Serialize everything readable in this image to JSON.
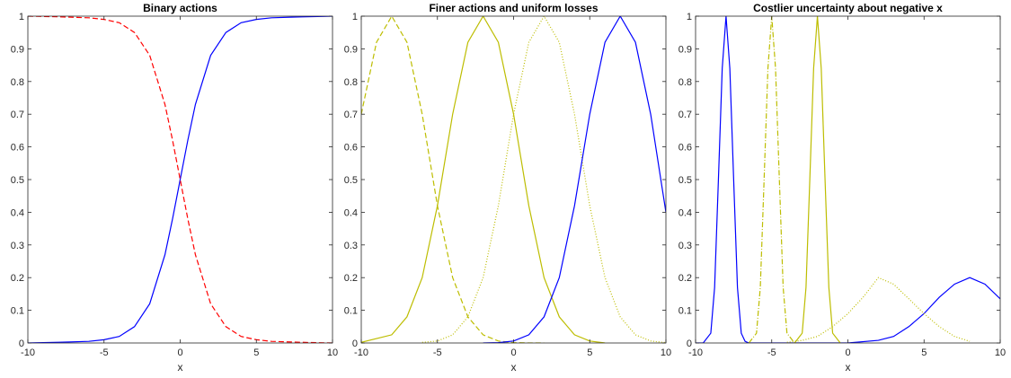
{
  "chart_data": [
    {
      "type": "line",
      "title": "Binary actions",
      "xlabel": "x",
      "ylabel": "",
      "xlim": [
        -10,
        10
      ],
      "ylim": [
        0,
        1
      ],
      "xticks": [
        "-10",
        "-5",
        "0",
        "5",
        "10"
      ],
      "yticks": [
        "0",
        "0.1",
        "0.2",
        "0.3",
        "0.4",
        "0.5",
        "0.6",
        "0.7",
        "0.8",
        "0.9",
        "1"
      ],
      "grid": false,
      "series": [
        {
          "color": "#0000ff",
          "style": "solid",
          "x": [
            -10,
            -8,
            -6,
            -5,
            -4,
            -3,
            -2,
            -1,
            -0.5,
            0,
            0.5,
            1,
            2,
            3,
            4,
            5,
            6,
            8,
            10
          ],
          "y": [
            0.0,
            0.002,
            0.005,
            0.01,
            0.02,
            0.05,
            0.12,
            0.27,
            0.38,
            0.5,
            0.62,
            0.73,
            0.88,
            0.95,
            0.98,
            0.99,
            0.995,
            0.998,
            1.0
          ]
        },
        {
          "color": "#ff0000",
          "style": "dashed",
          "x": [
            -10,
            -8,
            -6,
            -5,
            -4,
            -3,
            -2,
            -1,
            -0.5,
            0,
            0.5,
            1,
            2,
            3,
            4,
            5,
            6,
            8,
            10
          ],
          "y": [
            1.0,
            0.998,
            0.995,
            0.99,
            0.98,
            0.95,
            0.88,
            0.73,
            0.62,
            0.5,
            0.38,
            0.27,
            0.12,
            0.05,
            0.02,
            0.01,
            0.005,
            0.002,
            0.0
          ]
        }
      ]
    },
    {
      "type": "line",
      "title": "Finer actions and uniform losses",
      "xlabel": "x",
      "ylabel": "",
      "xlim": [
        -10,
        10
      ],
      "ylim": [
        0,
        1
      ],
      "xticks": [
        "-10",
        "-5",
        "0",
        "5",
        "10"
      ],
      "yticks": [
        "0",
        "0.1",
        "0.2",
        "0.3",
        "0.4",
        "0.5",
        "0.6",
        "0.7",
        "0.8",
        "0.9",
        "1"
      ],
      "grid": false,
      "series": [
        {
          "color": "#bdbd00",
          "style": "dashed",
          "x": [
            -10,
            -9,
            -8,
            -7,
            -6,
            -5,
            -4,
            -3,
            -2,
            -1,
            0,
            1,
            2
          ],
          "y": [
            0.7,
            0.92,
            1.0,
            0.92,
            0.7,
            0.42,
            0.2,
            0.08,
            0.025,
            0.006,
            0.001,
            0.0,
            0.0
          ]
        },
        {
          "color": "#bdbd00",
          "style": "solid",
          "x": [
            -10,
            -8,
            -7,
            -6,
            -5,
            -4,
            -3,
            -2,
            -1,
            0,
            1,
            2,
            3,
            4,
            5,
            6
          ],
          "y": [
            0.002,
            0.025,
            0.08,
            0.2,
            0.42,
            0.7,
            0.92,
            1.0,
            0.92,
            0.7,
            0.42,
            0.2,
            0.08,
            0.025,
            0.006,
            0.0
          ]
        },
        {
          "color": "#bdbd00",
          "style": "dotted",
          "x": [
            -6,
            -5,
            -4,
            -3,
            -2,
            -1,
            0,
            1,
            2,
            3,
            4,
            5,
            6,
            7,
            8,
            9,
            10
          ],
          "y": [
            0.002,
            0.006,
            0.025,
            0.08,
            0.2,
            0.42,
            0.7,
            0.92,
            1.0,
            0.92,
            0.7,
            0.42,
            0.2,
            0.08,
            0.025,
            0.006,
            0.001
          ]
        },
        {
          "color": "#0000ff",
          "style": "solid",
          "x": [
            -2,
            -1,
            0,
            1,
            2,
            3,
            4,
            5,
            6,
            7,
            8,
            9,
            10
          ],
          "y": [
            0.0,
            0.001,
            0.006,
            0.025,
            0.08,
            0.2,
            0.42,
            0.7,
            0.92,
            1.0,
            0.92,
            0.7,
            0.4
          ]
        }
      ]
    },
    {
      "type": "line",
      "title": "Costlier uncertainty about negative x",
      "xlabel": "x",
      "ylabel": "",
      "xlim": [
        -10,
        10
      ],
      "ylim": [
        0,
        1
      ],
      "xticks": [
        "-10",
        "-5",
        "0",
        "5",
        "10"
      ],
      "yticks": [
        "0",
        "0.1",
        "0.2",
        "0.3",
        "0.4",
        "0.5",
        "0.6",
        "0.7",
        "0.8",
        "0.9",
        "1"
      ],
      "grid": false,
      "series": [
        {
          "color": "#0000ff",
          "style": "solid",
          "x": [
            -10,
            -9.5,
            -9,
            -8.75,
            -8.5,
            -8.25,
            -8,
            -7.75,
            -7.5,
            -7.25,
            -7,
            -6.75,
            -6.5,
            -6,
            -5,
            0,
            2,
            3,
            4,
            5,
            6,
            7,
            8,
            9,
            10
          ],
          "y": [
            0.0,
            0.0,
            0.03,
            0.17,
            0.5,
            0.84,
            1.0,
            0.84,
            0.5,
            0.17,
            0.03,
            0.005,
            0.0,
            0.0,
            0.0,
            0.0,
            0.008,
            0.02,
            0.05,
            0.09,
            0.14,
            0.18,
            0.2,
            0.18,
            0.135
          ]
        },
        {
          "color": "#bdbd00",
          "style": "dashdot",
          "x": [
            -6.5,
            -6,
            -5.75,
            -5.5,
            -5.25,
            -5,
            -4.75,
            -4.5,
            -4.25,
            -4,
            -3.5
          ],
          "y": [
            0.0,
            0.03,
            0.17,
            0.5,
            0.84,
            1.0,
            0.84,
            0.5,
            0.17,
            0.03,
            0.0
          ]
        },
        {
          "color": "#bdbd00",
          "style": "solid",
          "x": [
            -3.5,
            -3,
            -2.75,
            -2.5,
            -2.25,
            -2,
            -1.75,
            -1.5,
            -1.25,
            -1,
            -0.5
          ],
          "y": [
            0.0,
            0.03,
            0.17,
            0.5,
            0.84,
            1.0,
            0.84,
            0.5,
            0.17,
            0.03,
            0.0
          ]
        },
        {
          "color": "#bdbd00",
          "style": "dotted",
          "x": [
            -4,
            -3,
            -2,
            -1,
            0,
            1,
            2,
            3,
            4,
            5,
            6,
            7,
            8
          ],
          "y": [
            0.002,
            0.008,
            0.02,
            0.05,
            0.09,
            0.14,
            0.2,
            0.18,
            0.135,
            0.09,
            0.05,
            0.02,
            0.005
          ]
        }
      ]
    }
  ]
}
